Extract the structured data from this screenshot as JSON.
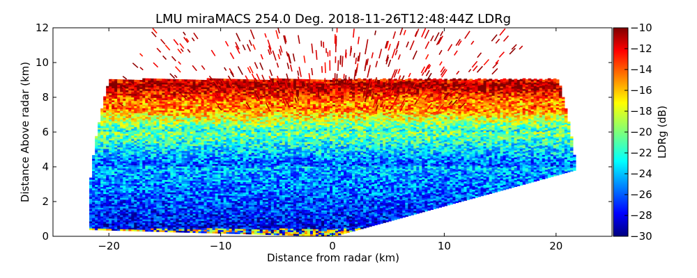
{
  "chart_data": {
    "type": "heatmap",
    "title": "LMU miraMACS 254.0 Deg. 2018-11-26T12:48:44Z  LDRg",
    "xlabel": "Distance from radar (km)",
    "ylabel": "Distance Above radar  (km)",
    "xlim": [
      -25,
      25
    ],
    "ylim": [
      0,
      12
    ],
    "xticks": [
      -20,
      -10,
      0,
      10,
      20
    ],
    "yticks": [
      0,
      2,
      4,
      6,
      8,
      10,
      12
    ],
    "colorbar": {
      "label": "LDRg (dB)",
      "range": [
        -30,
        -10
      ],
      "ticks": [
        -10,
        -12,
        -14,
        -16,
        -18,
        -20,
        -22,
        -24,
        -26,
        -28,
        -30
      ],
      "colormap": "jet"
    },
    "scan": {
      "azimuth_deg": 254.0,
      "max_range_km": 22,
      "min_elevation_left_deg": 1,
      "min_elevation_right_deg": 10
    },
    "layers": [
      {
        "height_km": [
          0,
          4
        ],
        "ldr_db": [
          -28,
          -24
        ]
      },
      {
        "height_km": [
          4,
          6
        ],
        "ldr_db": [
          -26,
          -20
        ]
      },
      {
        "height_km": [
          6,
          7.5
        ],
        "ldr_db": [
          -22,
          -14
        ]
      },
      {
        "height_km": [
          7.5,
          8.8
        ],
        "ldr_db": [
          -16,
          -10
        ]
      },
      {
        "height_km": [
          8.8,
          12
        ],
        "ldr_db": [
          -12,
          -10
        ]
      }
    ],
    "grid": false,
    "legend": "none"
  },
  "colors": {
    "axis": "#000000",
    "background": "#ffffff"
  }
}
